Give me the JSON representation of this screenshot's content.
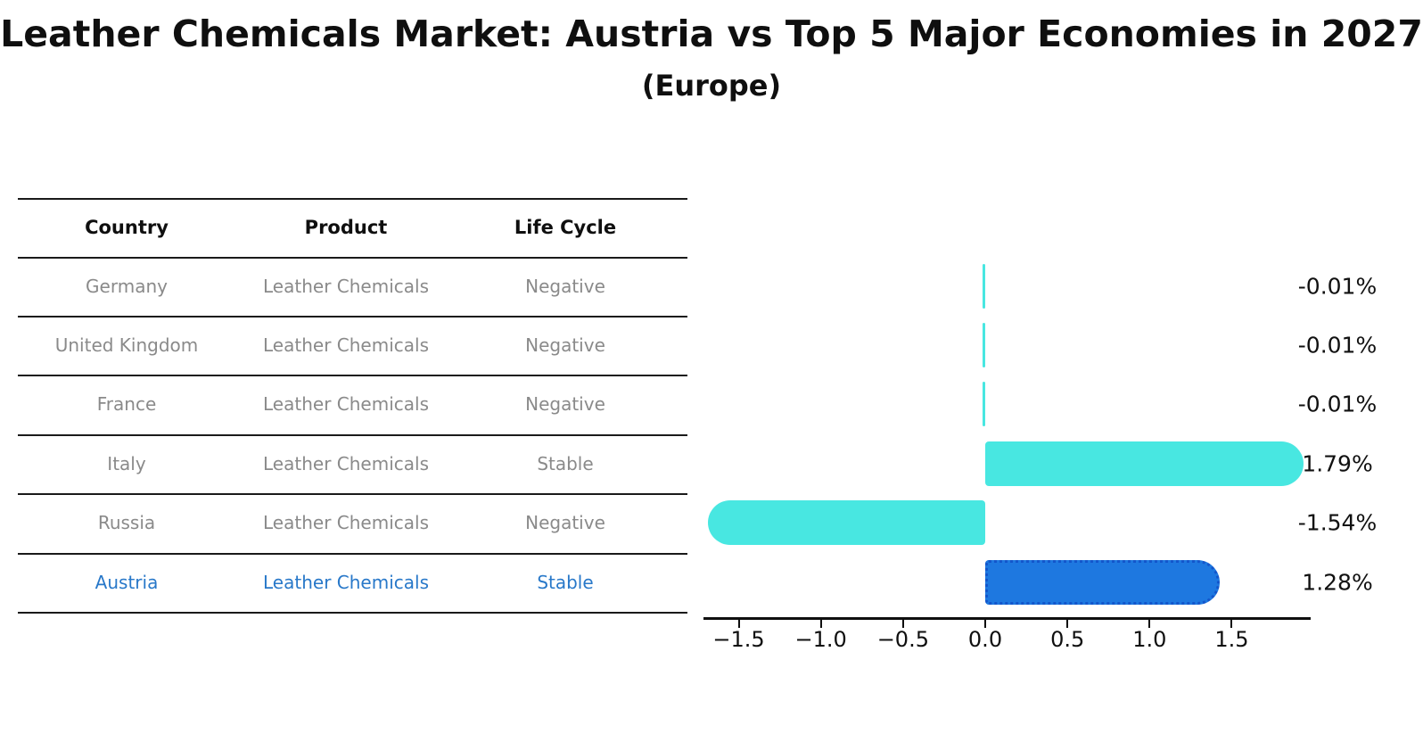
{
  "title": "Leather Chemicals Market: Austria vs Top 5 Major Economies in 2027",
  "subtitle": "(Europe)",
  "table": {
    "headers": [
      "Country",
      "Product",
      "Life Cycle"
    ],
    "rows": [
      {
        "country": "Germany",
        "product": "Leather Chemicals",
        "life_cycle": "Negative"
      },
      {
        "country": "United Kingdom",
        "product": "Leather Chemicals",
        "life_cycle": "Negative"
      },
      {
        "country": "France",
        "product": "Leather Chemicals",
        "life_cycle": "Negative"
      },
      {
        "country": "Italy",
        "product": "Leather Chemicals",
        "life_cycle": "Stable"
      },
      {
        "country": "Russia",
        "product": "Leather Chemicals",
        "life_cycle": "Negative"
      },
      {
        "country": "Austria",
        "product": "Leather Chemicals",
        "life_cycle": "Stable"
      }
    ],
    "highlighted_row": "Austria"
  },
  "chart_data": {
    "type": "bar",
    "orientation": "horizontal",
    "categories": [
      "Germany",
      "United Kingdom",
      "France",
      "Italy",
      "Russia",
      "Austria"
    ],
    "values": [
      -0.01,
      -0.01,
      -0.01,
      1.79,
      -1.54,
      1.28
    ],
    "value_labels": [
      "-0.01%",
      "-0.01%",
      "-0.01%",
      "1.79%",
      "-1.54%",
      "1.28%"
    ],
    "x_tick_labels": [
      "−1.5",
      "−1.0",
      "−0.5",
      "0.0",
      "0.5",
      "1.0",
      "1.5"
    ],
    "x_tick_values": [
      -1.5,
      -1.0,
      -0.5,
      0.0,
      0.5,
      1.0,
      1.5
    ],
    "xlim": [
      -1.72,
      1.98
    ],
    "grid": false,
    "legend": false,
    "highlight_index": 5,
    "highlight_category": "Austria",
    "colors": {
      "bar_default": "#48E7E1",
      "bar_highlight": "#1E78E0",
      "bar_highlight_border": "#1356CB",
      "value_label": "#111111",
      "highlight_text": "#2878C9",
      "table_text": "#8A8A8A",
      "heading_text": "#0F0F0F"
    }
  }
}
